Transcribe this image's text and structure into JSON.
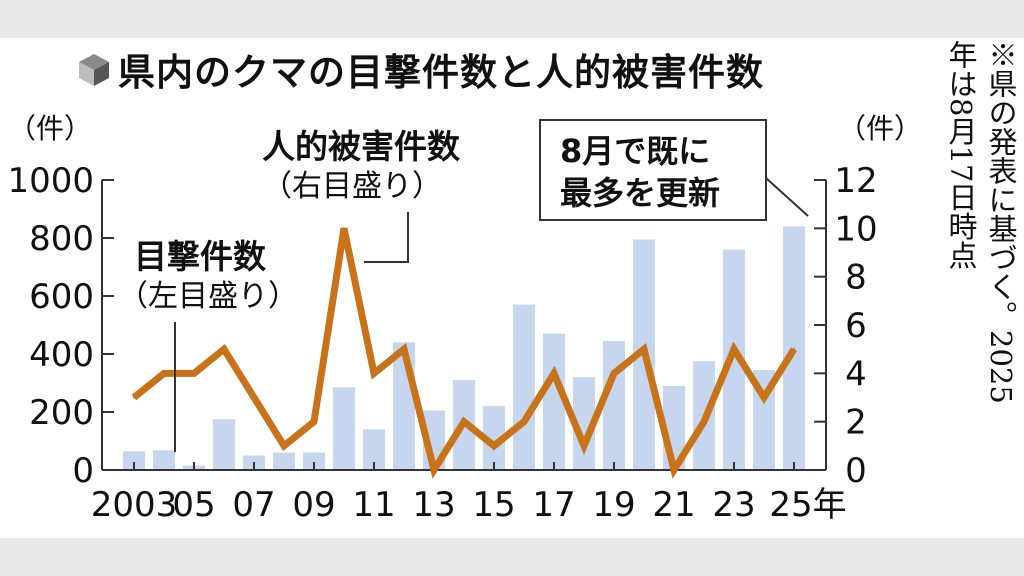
{
  "title": "県内のクマの目撃件数と人的被害件数",
  "note": {
    "lines": [
      "※県の発表に基づく。2025",
      "年は8月17日時点"
    ]
  },
  "annotations": {
    "sightings_label": "目撃件数",
    "sightings_axis_note": "（左目盛り）",
    "injuries_label": "人的被害件数",
    "injuries_axis_note": "（右目盛り）",
    "callout_line1": "8月で既に",
    "callout_line2": "最多を更新"
  },
  "colors": {
    "bar": "#c5d6ee",
    "line": "#c8731a",
    "callout_border": "#333333"
  },
  "chart_data": {
    "type": "bar",
    "x": [
      2003,
      2004,
      2005,
      2006,
      2007,
      2008,
      2009,
      2010,
      2011,
      2012,
      2013,
      2014,
      2015,
      2016,
      2017,
      2018,
      2019,
      2020,
      2021,
      2022,
      2023,
      2024,
      2025
    ],
    "x_tick_labels": [
      "2003",
      "05",
      "07",
      "09",
      "11",
      "13",
      "15",
      "17",
      "19",
      "21",
      "23",
      "25年"
    ],
    "x_tick_values": [
      2003,
      2005,
      2007,
      2009,
      2011,
      2013,
      2015,
      2017,
      2019,
      2021,
      2023,
      2025
    ],
    "series": [
      {
        "type": "bar",
        "axis": "left",
        "values": [
          65,
          68,
          15,
          175,
          50,
          60,
          60,
          285,
          140,
          440,
          205,
          310,
          220,
          570,
          470,
          320,
          445,
          795,
          290,
          375,
          760,
          345,
          840
        ]
      },
      {
        "type": "line",
        "axis": "right",
        "values": [
          3,
          4,
          4,
          5,
          3,
          1,
          2,
          10,
          4,
          5,
          0,
          2,
          1,
          2,
          4,
          1,
          4,
          5,
          0,
          2,
          5,
          3,
          5
        ]
      }
    ],
    "left_axis": {
      "unit": "（件）",
      "ylim": [
        0,
        1000
      ],
      "ticks": [
        0,
        200,
        400,
        600,
        800,
        1000
      ],
      "tick_labels": [
        "0",
        "200",
        "400",
        "600",
        "800",
        "1000"
      ]
    },
    "right_axis": {
      "unit": "（件）",
      "ylim": [
        0,
        12
      ],
      "ticks": [
        0,
        2,
        4,
        6,
        8,
        10,
        12
      ],
      "tick_labels": [
        "0",
        "2",
        "4",
        "6",
        "8",
        "10",
        "12"
      ]
    },
    "grid": false,
    "legend": "none"
  }
}
